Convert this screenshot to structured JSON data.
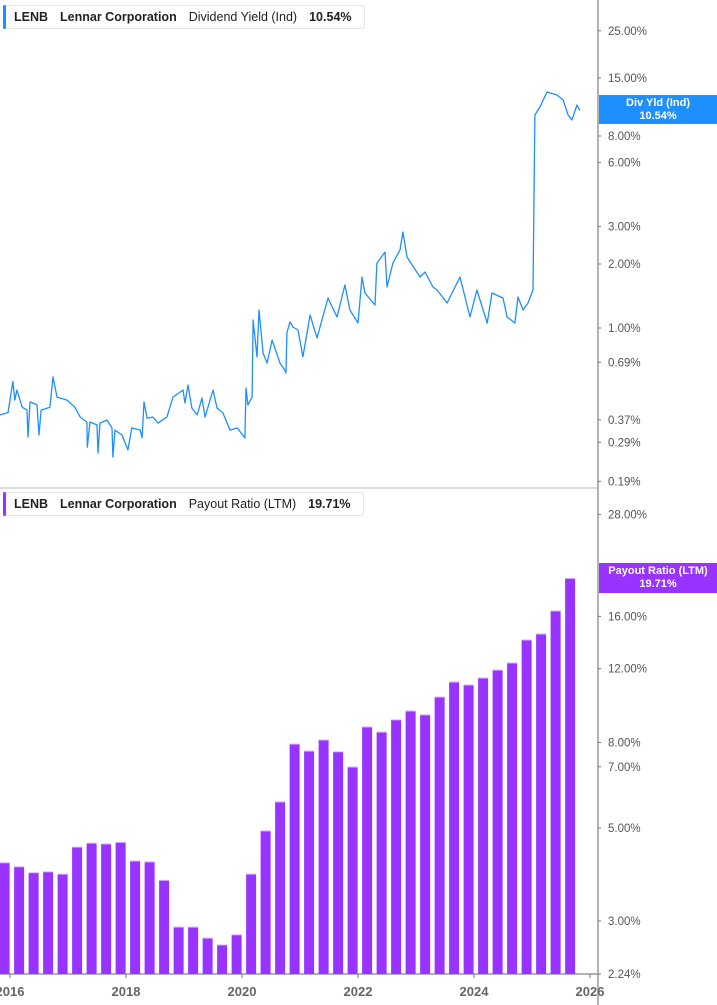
{
  "top_legend": {
    "ticker": "LENB",
    "company": "Lennar Corporation",
    "metric": "Dividend Yield (Ind)",
    "value": "10.54%"
  },
  "bottom_legend": {
    "ticker": "LENB",
    "company": "Lennar Corporation",
    "metric": "Payout Ratio (LTM)",
    "value": "19.71%"
  },
  "top_tag": {
    "label": "Div Yld (Ind)",
    "value": "10.54%"
  },
  "bottom_tag": {
    "label": "Payout Ratio (LTM)",
    "value": "19.71%"
  },
  "colors": {
    "dividend_yield": "#1e8fff",
    "payout_ratio": "#9933ff",
    "axis": "#999999"
  },
  "chart_data": [
    {
      "type": "line",
      "series": [
        {
          "name": "Dividend Yield (Ind)",
          "points": [
            [
              "2015-10-30",
              0.39
            ],
            [
              "2015-12-19",
              0.4
            ],
            [
              "2016-01-19",
              0.56
            ],
            [
              "2016-02-01",
              0.458
            ],
            [
              "2016-02-14",
              0.511
            ],
            [
              "2016-03-17",
              0.424
            ],
            [
              "2016-04-17",
              0.411
            ],
            [
              "2016-04-23",
              0.307
            ],
            [
              "2016-05-06",
              0.449
            ],
            [
              "2016-06-19",
              0.435
            ],
            [
              "2016-07-01",
              0.314
            ],
            [
              "2016-07-14",
              0.411
            ],
            [
              "2016-09-09",
              0.424
            ],
            [
              "2016-09-28",
              0.589
            ],
            [
              "2016-10-23",
              0.473
            ],
            [
              "2016-12-25",
              0.458
            ],
            [
              "2017-02-14",
              0.424
            ],
            [
              "2017-03-17",
              0.381
            ],
            [
              "2017-04-29",
              0.361
            ],
            [
              "2017-05-01",
              0.275
            ],
            [
              "2017-05-18",
              0.361
            ],
            [
              "2017-07-01",
              0.35
            ],
            [
              "2017-07-07",
              0.258
            ],
            [
              "2017-07-20",
              0.357
            ],
            [
              "2017-09-02",
              0.369
            ],
            [
              "2017-10-04",
              0.339
            ],
            [
              "2017-10-10",
              0.247
            ],
            [
              "2017-10-23",
              0.331
            ],
            [
              "2017-12-06",
              0.314
            ],
            [
              "2018-01-13",
              0.267
            ],
            [
              "2018-02-07",
              0.339
            ],
            [
              "2018-03-29",
              0.331
            ],
            [
              "2018-04-11",
              0.304
            ],
            [
              "2018-04-23",
              0.449
            ],
            [
              "2018-05-12",
              0.377
            ],
            [
              "2018-06-19",
              0.381
            ],
            [
              "2018-07-20",
              0.357
            ],
            [
              "2018-09-15",
              0.381
            ],
            [
              "2018-10-23",
              0.473
            ],
            [
              "2018-12-25",
              0.511
            ],
            [
              "2019-01-07",
              0.444
            ],
            [
              "2019-01-26",
              0.54
            ],
            [
              "2019-02-20",
              0.42
            ],
            [
              "2019-03-23",
              0.39
            ],
            [
              "2019-04-23",
              0.469
            ],
            [
              "2019-05-12",
              0.381
            ],
            [
              "2019-07-01",
              0.511
            ],
            [
              "2019-07-27",
              0.42
            ],
            [
              "2019-09-03",
              0.398
            ],
            [
              "2019-10-17",
              0.331
            ],
            [
              "2019-12-01",
              0.339
            ],
            [
              "2020-01-19",
              0.304
            ],
            [
              "2020-01-26",
              0.522
            ],
            [
              "2020-02-08",
              0.435
            ],
            [
              "2020-03-04",
              0.473
            ],
            [
              "2020-03-10",
              1.09
            ],
            [
              "2020-04-04",
              0.731
            ],
            [
              "2020-04-17",
              1.215
            ],
            [
              "2020-05-12",
              0.763
            ],
            [
              "2020-06-07",
              0.684
            ],
            [
              "2020-07-08",
              0.878
            ],
            [
              "2020-08-27",
              0.684
            ],
            [
              "2020-09-27",
              0.634
            ],
            [
              "2020-10-04",
              0.614
            ],
            [
              "2020-10-10",
              0.947
            ],
            [
              "2020-10-29",
              1.067
            ],
            [
              "2020-11-17",
              1.011
            ],
            [
              "2020-12-19",
              0.979
            ],
            [
              "2021-01-19",
              0.731
            ],
            [
              "2021-03-04",
              1.151
            ],
            [
              "2021-04-17",
              0.898
            ],
            [
              "2021-06-25",
              1.384
            ],
            [
              "2021-08-21",
              1.126
            ],
            [
              "2021-10-10",
              1.593
            ],
            [
              "2021-11-11",
              1.215
            ],
            [
              "2022-01-01",
              1.056
            ],
            [
              "2022-01-26",
              1.738
            ],
            [
              "2022-02-14",
              1.461
            ],
            [
              "2022-04-17",
              1.283
            ],
            [
              "2022-04-29",
              2.02
            ],
            [
              "2022-06-19",
              2.276
            ],
            [
              "2022-07-01",
              1.559
            ],
            [
              "2022-08-08",
              2.02
            ],
            [
              "2022-09-22",
              2.328
            ],
            [
              "2022-10-10",
              2.83
            ],
            [
              "2022-11-05",
              2.158
            ],
            [
              "2023-01-26",
              1.738
            ],
            [
              "2023-02-27",
              1.834
            ],
            [
              "2023-04-17",
              1.559
            ],
            [
              "2023-05-12",
              1.509
            ],
            [
              "2023-07-14",
              1.311
            ],
            [
              "2023-10-04",
              1.738
            ],
            [
              "2023-12-06",
              1.126
            ],
            [
              "2024-01-19",
              1.509
            ],
            [
              "2024-03-23",
              1.056
            ],
            [
              "2024-04-23",
              1.461
            ],
            [
              "2024-07-01",
              1.384
            ],
            [
              "2024-07-27",
              1.126
            ],
            [
              "2024-09-15",
              1.056
            ],
            [
              "2024-10-04",
              1.399
            ],
            [
              "2024-11-05",
              1.215
            ],
            [
              "2024-12-06",
              1.311
            ],
            [
              "2025-01-07",
              1.509
            ],
            [
              "2025-01-19",
              10.04
            ],
            [
              "2025-02-20",
              10.95
            ],
            [
              "2025-04-04",
              12.88
            ],
            [
              "2025-06-07",
              12.47
            ],
            [
              "2025-07-14",
              11.81
            ],
            [
              "2025-08-15",
              10.04
            ],
            [
              "2025-09-09",
              9.51
            ],
            [
              "2025-10-10",
              11.19
            ],
            [
              "2025-10-29",
              10.54
            ]
          ]
        }
      ],
      "y_scale": "log",
      "yticks": [
        "25.00%",
        "15.00%",
        "8.00%",
        "6.00%",
        "3.00%",
        "2.00%",
        "1.00%",
        "0.69%",
        "0.37%",
        "0.29%",
        "0.19%"
      ],
      "ytick_values": [
        25,
        15,
        8,
        6,
        3,
        2,
        1,
        0.69,
        0.37,
        0.29,
        0.19
      ],
      "xlim": [
        "2015-10-15",
        "2026-03-01"
      ],
      "grid": false,
      "legend": "top-left"
    },
    {
      "type": "bar",
      "series": [
        {
          "name": "Payout Ratio (LTM)",
          "x": [
            "2015-11",
            "2016-02",
            "2016-05",
            "2016-08",
            "2016-11",
            "2017-02",
            "2017-05",
            "2017-08",
            "2017-11",
            "2018-02",
            "2018-05",
            "2018-08",
            "2018-11",
            "2019-02",
            "2019-05",
            "2019-08",
            "2019-11",
            "2020-02",
            "2020-05",
            "2020-08",
            "2020-11",
            "2021-02",
            "2021-05",
            "2021-08",
            "2021-11",
            "2022-02",
            "2022-05",
            "2022-08",
            "2022-11",
            "2023-02",
            "2023-05",
            "2023-08",
            "2023-11",
            "2024-02",
            "2024-05",
            "2024-08",
            "2024-11",
            "2025-02",
            "2025-05",
            "2025-08"
          ],
          "values": [
            4.13,
            4.04,
            3.91,
            3.93,
            3.88,
            4.5,
            4.6,
            4.58,
            4.62,
            4.17,
            4.15,
            3.75,
            2.9,
            2.9,
            2.73,
            2.63,
            2.78,
            3.88,
            4.92,
            5.77,
            7.93,
            7.63,
            8.11,
            7.6,
            6.99,
            8.71,
            8.47,
            9.06,
            9.51,
            9.31,
            10.27,
            11.15,
            10.97,
            11.4,
            11.91,
            12.38,
            14.05,
            14.52,
            16.48,
            19.71
          ]
        }
      ],
      "y_scale": "log",
      "yticks": [
        "28.00%",
        "16.00%",
        "12.00%",
        "8.00%",
        "7.00%",
        "5.00%",
        "3.00%",
        "2.24%"
      ],
      "ytick_values": [
        28,
        16,
        12,
        8,
        7,
        5,
        3,
        2.24
      ],
      "xticks": [
        "2016",
        "2018",
        "2020",
        "2022",
        "2024",
        "2026"
      ],
      "xlim": [
        "2015-10-15",
        "2026-03-01"
      ],
      "grid": false,
      "legend": "top-left"
    }
  ]
}
